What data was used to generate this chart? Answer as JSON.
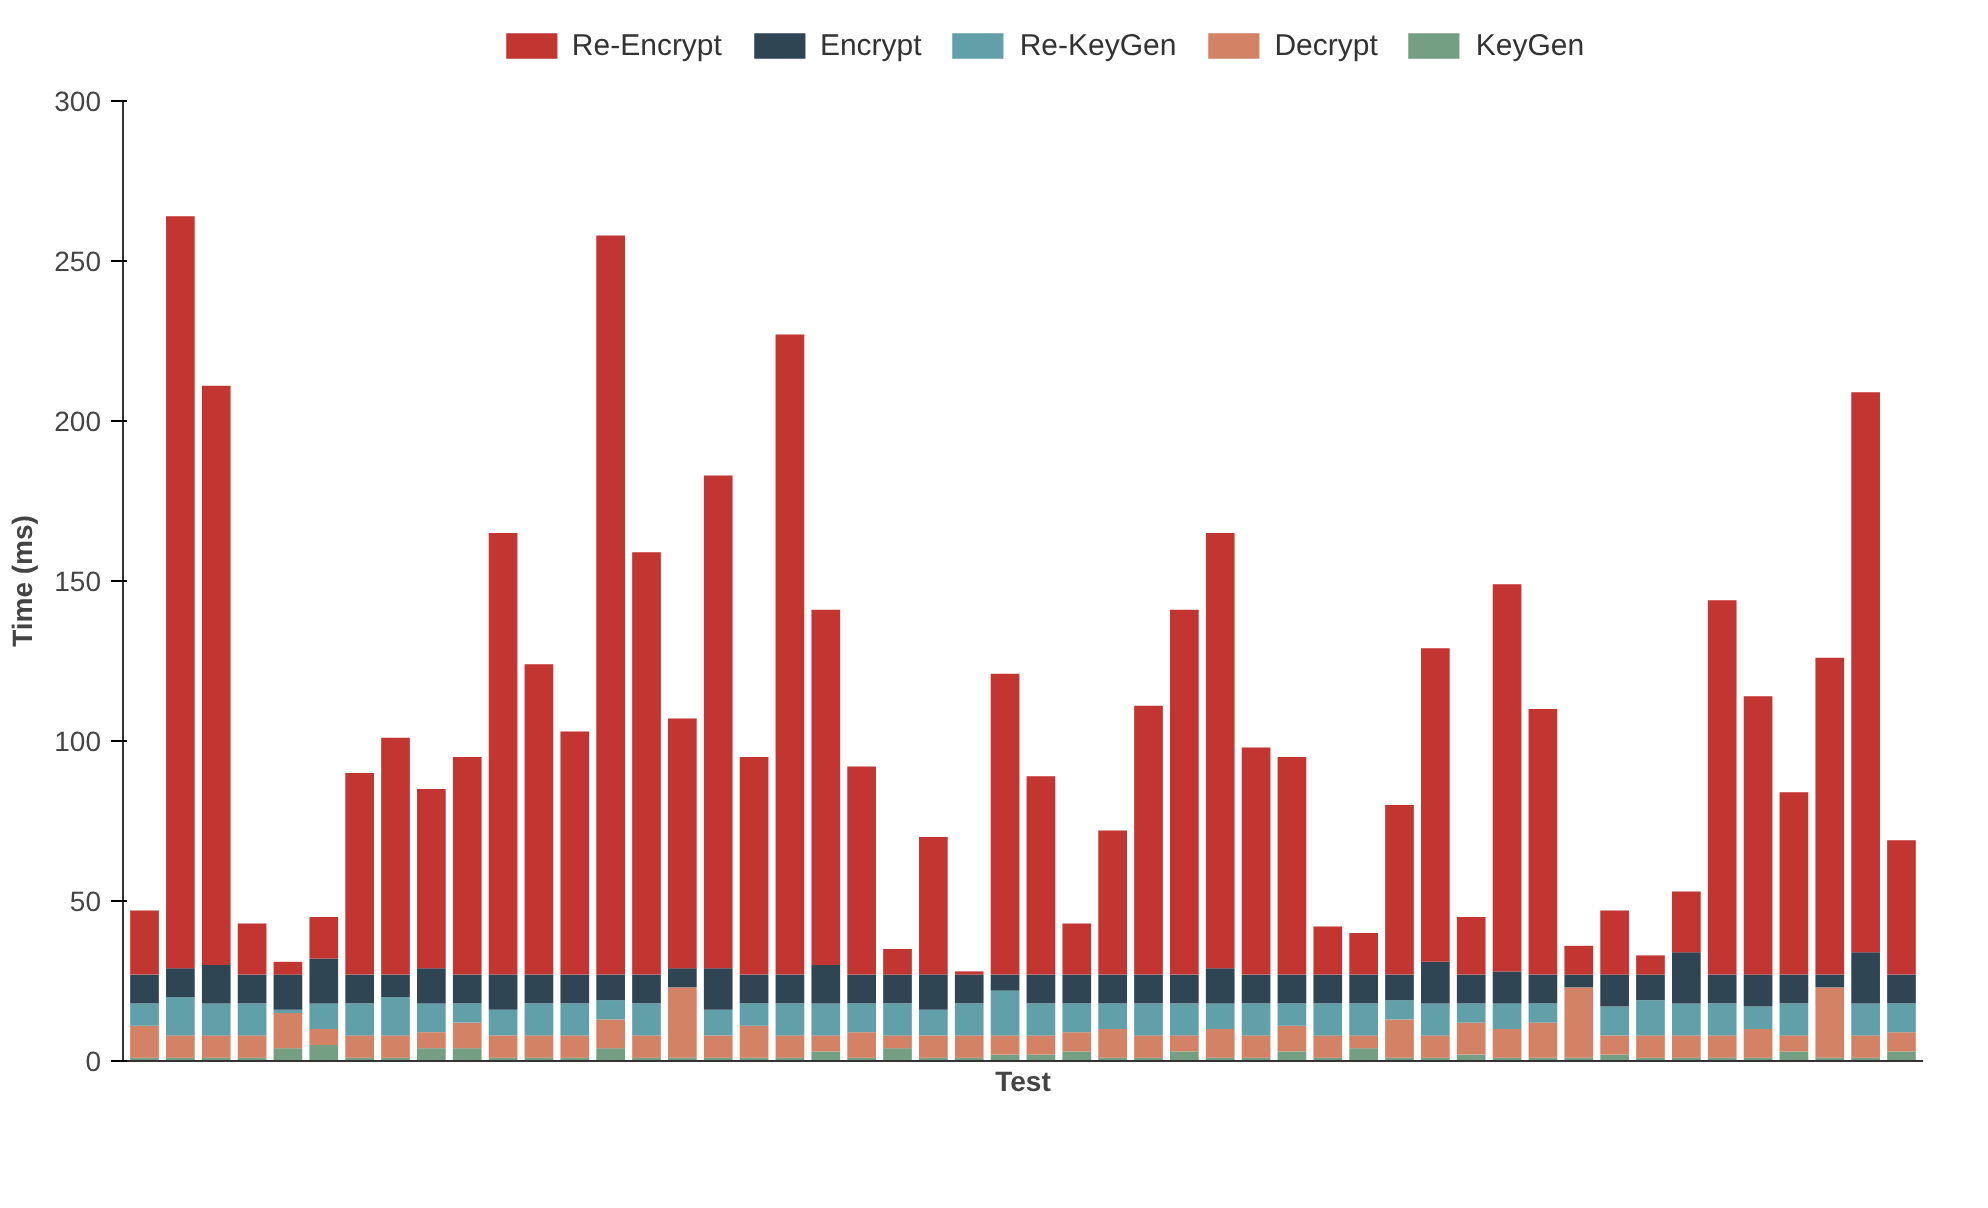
{
  "chart_data": {
    "type": "bar",
    "stacked": true,
    "xlabel": "Test",
    "ylabel": "Time (ms)",
    "ylim": [
      0,
      300
    ],
    "yticks": [
      0,
      50,
      100,
      150,
      200,
      250,
      300
    ],
    "grid": false,
    "legend": "top",
    "categories": [
      null,
      null,
      null,
      null,
      null,
      null,
      null,
      null,
      null,
      null,
      null,
      null,
      null,
      null,
      null,
      null,
      null,
      null,
      null,
      null,
      null,
      null,
      null,
      null,
      null,
      null,
      null,
      null,
      null,
      null,
      null,
      null,
      null,
      null,
      null,
      null,
      null,
      null,
      null,
      null,
      null,
      null,
      null,
      null,
      null,
      null,
      null,
      null,
      null,
      null
    ],
    "series": [
      {
        "name": "KeyGen",
        "color": "#749f83",
        "values": [
          1,
          1,
          1,
          1,
          4,
          5,
          1,
          1,
          4,
          4,
          1,
          1,
          1,
          4,
          1,
          1,
          1,
          1,
          1,
          3,
          1,
          4,
          1,
          1,
          2,
          2,
          3,
          1,
          1,
          3,
          1,
          1,
          3,
          1,
          4,
          1,
          1,
          2,
          1,
          1,
          1,
          2,
          1,
          1,
          1,
          1,
          3,
          1,
          1,
          3
        ]
      },
      {
        "name": "Decrypt",
        "color": "#d48265",
        "values": [
          10,
          7,
          7,
          7,
          11,
          5,
          7,
          7,
          5,
          8,
          7,
          7,
          7,
          9,
          7,
          22,
          7,
          10,
          7,
          5,
          8,
          4,
          7,
          7,
          6,
          6,
          6,
          9,
          7,
          5,
          9,
          7,
          8,
          7,
          4,
          12,
          7,
          10,
          9,
          11,
          22,
          6,
          7,
          7,
          7,
          9,
          5,
          22,
          7,
          6
        ]
      },
      {
        "name": "Re-KeyGen",
        "color": "#61a0a8",
        "values": [
          7,
          12,
          10,
          10,
          1,
          8,
          10,
          12,
          9,
          6,
          8,
          10,
          10,
          6,
          10,
          0,
          8,
          7,
          10,
          10,
          9,
          10,
          8,
          10,
          14,
          10,
          9,
          8,
          10,
          10,
          8,
          10,
          7,
          10,
          10,
          6,
          10,
          6,
          8,
          6,
          0,
          9,
          11,
          10,
          10,
          7,
          10,
          0,
          10,
          9
        ]
      },
      {
        "name": "Encrypt",
        "color": "#2f4554",
        "values": [
          9,
          9,
          12,
          9,
          11,
          14,
          9,
          7,
          11,
          9,
          11,
          9,
          9,
          8,
          9,
          6,
          13,
          9,
          9,
          12,
          9,
          9,
          11,
          9,
          5,
          9,
          9,
          9,
          9,
          9,
          11,
          9,
          9,
          9,
          9,
          8,
          13,
          9,
          10,
          9,
          4,
          10,
          8,
          16,
          9,
          10,
          9,
          4,
          16,
          9
        ]
      },
      {
        "name": "Re-Encrypt",
        "color": "#c23531",
        "values": [
          20,
          235,
          181,
          16,
          4,
          13,
          63,
          74,
          56,
          68,
          138,
          97,
          76,
          231,
          132,
          78,
          154,
          68,
          200,
          111,
          65,
          8,
          43,
          1,
          94,
          62,
          16,
          45,
          84,
          114,
          136,
          71,
          68,
          15,
          13,
          53,
          98,
          18,
          121,
          83,
          9,
          20,
          6,
          19,
          117,
          87,
          57,
          99,
          175,
          42
        ]
      }
    ]
  }
}
